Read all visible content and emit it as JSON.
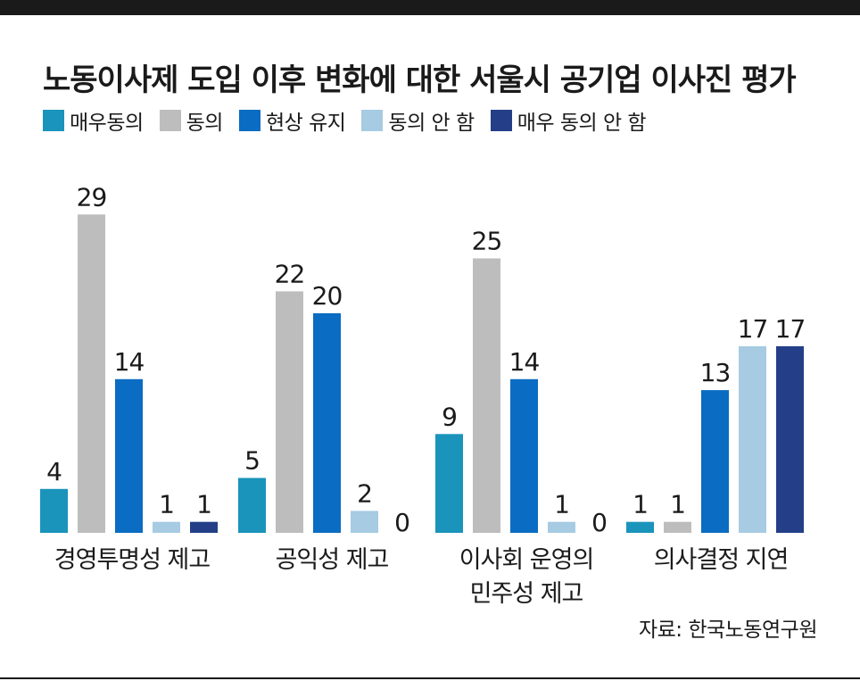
{
  "title": "노동이사제 도입 이후 변화에 대한 서울시 공기업 이사진 평가",
  "source": "자료: 한국노동연구원",
  "chart_data": {
    "type": "bar",
    "title": "노동이사제 도입 이후 변화에 대한 서울시 공기업 이사진 평가",
    "categories": [
      [
        "경영투명성 제고"
      ],
      [
        "공익성 제고"
      ],
      [
        "이사회 운영의",
        "민주성 제고"
      ],
      [
        "의사결정 지연"
      ]
    ],
    "series": [
      {
        "name": "매우동의",
        "color": "#1a94bb",
        "values": [
          4,
          5,
          9,
          1
        ]
      },
      {
        "name": "동의",
        "color": "#bdbdbd",
        "values": [
          29,
          22,
          25,
          1
        ]
      },
      {
        "name": "현상 유지",
        "color": "#0a6cc2",
        "values": [
          14,
          20,
          14,
          13
        ]
      },
      {
        "name": "동의안 함",
        "display_name": "동의 안 함",
        "color": "#a6cbe2",
        "values": [
          1,
          2,
          1,
          17
        ]
      },
      {
        "name": "매우 동의안 함",
        "display_name": "매우 동의 안 함",
        "color": "#243f88",
        "values": [
          1,
          0,
          0,
          17
        ]
      }
    ],
    "ylim": [
      0,
      29
    ],
    "grid": false,
    "legend_position": "top-left"
  }
}
